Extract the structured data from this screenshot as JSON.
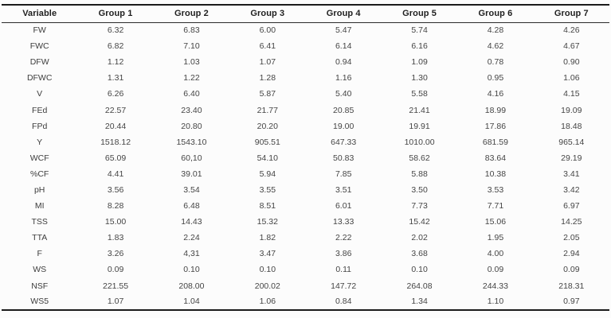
{
  "table": {
    "columns": [
      "Variable",
      "Group 1",
      "Group 2",
      "Group 3",
      "Group 4",
      "Group 5",
      "Group 6",
      "Group 7"
    ],
    "rows": [
      {
        "variable": "FW",
        "values": [
          "6.32",
          "6.83",
          "6.00",
          "5.47",
          "5.74",
          "4.28",
          "4.26"
        ]
      },
      {
        "variable": "FWC",
        "values": [
          "6.82",
          "7.10",
          "6.41",
          "6.14",
          "6.16",
          "4.62",
          "4.67"
        ]
      },
      {
        "variable": "DFW",
        "values": [
          "1.12",
          "1.03",
          "1.07",
          "0.94",
          "1.09",
          "0.78",
          "0.90"
        ]
      },
      {
        "variable": "DFWC",
        "values": [
          "1.31",
          "1.22",
          "1.28",
          "1.16",
          "1.30",
          "0.95",
          "1.06"
        ]
      },
      {
        "variable": "V",
        "values": [
          "6.26",
          "6.40",
          "5.87",
          "5.40",
          "5.58",
          "4.16",
          "4.15"
        ]
      },
      {
        "variable": "FEd",
        "values": [
          "22.57",
          "23.40",
          "21.77",
          "20.85",
          "21.41",
          "18.99",
          "19.09"
        ]
      },
      {
        "variable": "FPd",
        "values": [
          "20.44",
          "20.80",
          "20.20",
          "19.00",
          "19.91",
          "17.86",
          "18.48"
        ]
      },
      {
        "variable": "Y",
        "values": [
          "1518.12",
          "1543.10",
          "905.51",
          "647.33",
          "1010.00",
          "681.59",
          "965.14"
        ]
      },
      {
        "variable": "WCF",
        "values": [
          "65.09",
          "60,10",
          "54.10",
          "50.83",
          "58.62",
          "83.64",
          "29.19"
        ]
      },
      {
        "variable": "%CF",
        "values": [
          "4.41",
          "39.01",
          "5.94",
          "7.85",
          "5.88",
          "10.38",
          "3.41"
        ]
      },
      {
        "variable": "pH",
        "values": [
          "3.56",
          "3.54",
          "3.55",
          "3.51",
          "3.50",
          "3.53",
          "3.42"
        ]
      },
      {
        "variable": "MI",
        "values": [
          "8.28",
          "6.48",
          "8.51",
          "6.01",
          "7.73",
          "7.71",
          "6.97"
        ]
      },
      {
        "variable": "TSS",
        "values": [
          "15.00",
          "14.43",
          "15.32",
          "13.33",
          "15.42",
          "15.06",
          "14.25"
        ]
      },
      {
        "variable": "TTA",
        "values": [
          "1.83",
          "2.24",
          "1.82",
          "2.22",
          "2.02",
          "1.95",
          "2.05"
        ]
      },
      {
        "variable": "F",
        "values": [
          "3.26",
          "4,31",
          "3.47",
          "3.86",
          "3.68",
          "4.00",
          "2.94"
        ]
      },
      {
        "variable": "WS",
        "values": [
          "0.09",
          "0.10",
          "0.10",
          "0.11",
          "0.10",
          "0.09",
          "0.09"
        ]
      },
      {
        "variable": "NSF",
        "values": [
          "221.55",
          "208.00",
          "200.02",
          "147.72",
          "264.08",
          "244.33",
          "218.31"
        ]
      },
      {
        "variable": "WS5",
        "values": [
          "1.07",
          "1.04",
          "1.06",
          "0.84",
          "1.34",
          "1.10",
          "0.97"
        ]
      }
    ]
  },
  "colors": {
    "background": "#fcfcfc",
    "border_strong": "#1b1b1b",
    "border_header": "#2a2a2a",
    "header_text": "#1f1f1f",
    "cell_text": "#454545"
  }
}
